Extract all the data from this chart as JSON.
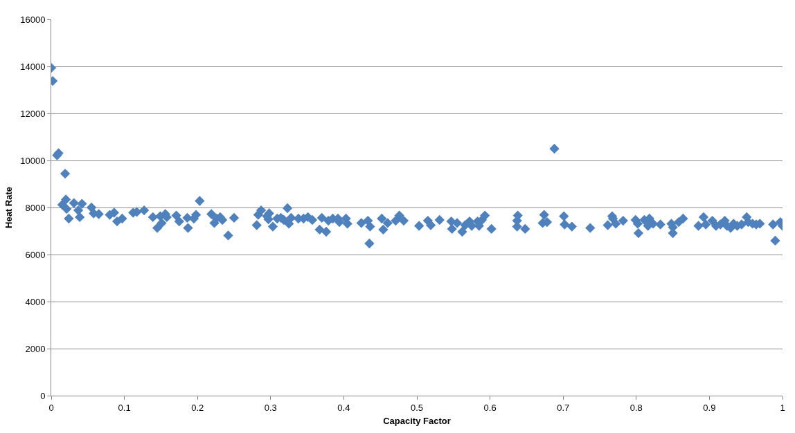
{
  "chart_data": {
    "type": "scatter",
    "xlabel": "Capacity Factor",
    "ylabel": "Heat Rate",
    "marker": "diamond",
    "grid": "y",
    "legend": false,
    "xlim": [
      0,
      1
    ],
    "xticks": [
      0,
      0.1,
      0.2,
      0.3,
      0.4,
      0.5,
      0.6,
      0.7,
      0.8,
      0.9,
      1
    ],
    "ylim": [
      0,
      16000
    ],
    "yticks": [
      0,
      2000,
      4000,
      6000,
      8000,
      10000,
      12000,
      14000,
      16000
    ],
    "series": [
      {
        "color": "#4f81bd",
        "x": [
          0,
          0.002,
          0.008,
          0.01,
          0.019,
          0.015,
          0.02,
          0.021,
          0.024,
          0.031,
          0.037,
          0.039,
          0.042,
          0.055,
          0.058,
          0.065,
          0.08,
          0.086,
          0.09,
          0.097,
          0.112,
          0.117,
          0.127,
          0.139,
          0.145,
          0.149,
          0.151,
          0.156,
          0.158,
          0.171,
          0.175,
          0.186,
          0.187,
          0.195,
          0.198,
          0.203,
          0.219,
          0.223,
          0.226,
          0.231,
          0.234,
          0.242,
          0.25,
          0.281,
          0.283,
          0.287,
          0.295,
          0.297,
          0.298,
          0.303,
          0.309,
          0.314,
          0.318,
          0.323,
          0.325,
          0.328,
          0.338,
          0.345,
          0.351,
          0.357,
          0.367,
          0.37,
          0.376,
          0.379,
          0.385,
          0.392,
          0.394,
          0.403,
          0.405,
          0.424,
          0.433,
          0.436,
          0.435,
          0.452,
          0.454,
          0.46,
          0.471,
          0.476,
          0.482,
          0.503,
          0.515,
          0.519,
          0.531,
          0.547,
          0.548,
          0.555,
          0.562,
          0.566,
          0.572,
          0.575,
          0.583,
          0.585,
          0.589,
          0.593,
          0.602,
          0.637,
          0.638,
          0.637,
          0.648,
          0.674,
          0.672,
          0.678,
          0.688,
          0.701,
          0.702,
          0.712,
          0.737,
          0.761,
          0.768,
          0.772,
          0.782,
          0.767,
          0.799,
          0.803,
          0.802,
          0.811,
          0.818,
          0.816,
          0.823,
          0.833,
          0.848,
          0.85,
          0.85,
          0.858,
          0.864,
          0.885,
          0.892,
          0.895,
          0.904,
          0.909,
          0.915,
          0.921,
          0.924,
          0.929,
          0.933,
          0.938,
          0.944,
          0.951,
          0.953,
          0.959,
          0.964,
          0.969,
          0.987,
          0.99,
          0.997,
          1.0
        ],
        "values": [
          13940,
          13380,
          10220,
          10310,
          9440,
          8120,
          8340,
          7940,
          7530,
          8190,
          7880,
          7590,
          8160,
          8000,
          7750,
          7720,
          7690,
          7780,
          7410,
          7530,
          7780,
          7810,
          7880,
          7590,
          7130,
          7630,
          7340,
          7720,
          7590,
          7660,
          7410,
          7560,
          7130,
          7530,
          7690,
          8280,
          7720,
          7340,
          7530,
          7590,
          7470,
          6810,
          7560,
          7250,
          7690,
          7880,
          7630,
          7500,
          7750,
          7190,
          7530,
          7560,
          7470,
          7970,
          7310,
          7560,
          7530,
          7530,
          7590,
          7470,
          7060,
          7560,
          6970,
          7440,
          7530,
          7530,
          7380,
          7530,
          7310,
          7340,
          7440,
          7190,
          6470,
          7530,
          7060,
          7340,
          7440,
          7660,
          7440,
          7220,
          7440,
          7250,
          7470,
          7410,
          7090,
          7340,
          6970,
          7250,
          7410,
          7220,
          7410,
          7220,
          7470,
          7660,
          7090,
          7440,
          7660,
          7190,
          7090,
          7690,
          7340,
          7380,
          10500,
          7630,
          7280,
          7190,
          7130,
          7250,
          7530,
          7310,
          7440,
          7630,
          7470,
          6910,
          7310,
          7470,
          7530,
          7220,
          7310,
          7280,
          7310,
          6910,
          7160,
          7380,
          7530,
          7220,
          7590,
          7280,
          7440,
          7220,
          7280,
          7440,
          7220,
          7130,
          7310,
          7220,
          7280,
          7590,
          7380,
          7310,
          7280,
          7310,
          7280,
          6590,
          7380,
          7220
        ]
      }
    ]
  }
}
